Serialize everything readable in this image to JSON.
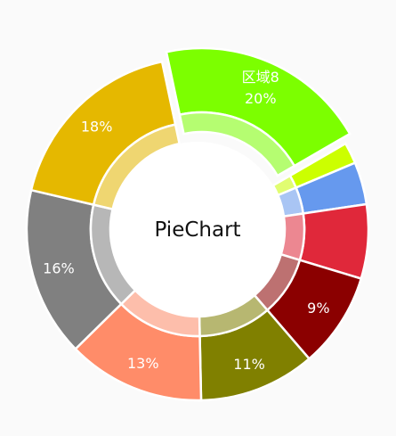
{
  "chart_data": {
    "type": "pie",
    "style": "donut",
    "center_text": "PieChart",
    "slices": [
      {
        "label": "区域8",
        "percent_label": "20%",
        "value": 20,
        "color": "#7cff00",
        "highlighted": true
      },
      {
        "label": "",
        "percent_label": "",
        "value": 2,
        "color": "#ccff00"
      },
      {
        "label": "",
        "percent_label": "",
        "value": 4,
        "color": "#6699ee"
      },
      {
        "label": "",
        "percent_label": "",
        "value": 7,
        "color": "#e0283a"
      },
      {
        "label": "",
        "percent_label": "9%",
        "value": 9,
        "color": "#8b0000"
      },
      {
        "label": "",
        "percent_label": "11%",
        "value": 11,
        "color": "#808000"
      },
      {
        "label": "",
        "percent_label": "13%",
        "value": 13,
        "color": "#ff8c69"
      },
      {
        "label": "",
        "percent_label": "16%",
        "value": 16,
        "color": "#808080"
      },
      {
        "label": "",
        "percent_label": "18%",
        "value": 18,
        "color": "#e5b800"
      }
    ]
  }
}
